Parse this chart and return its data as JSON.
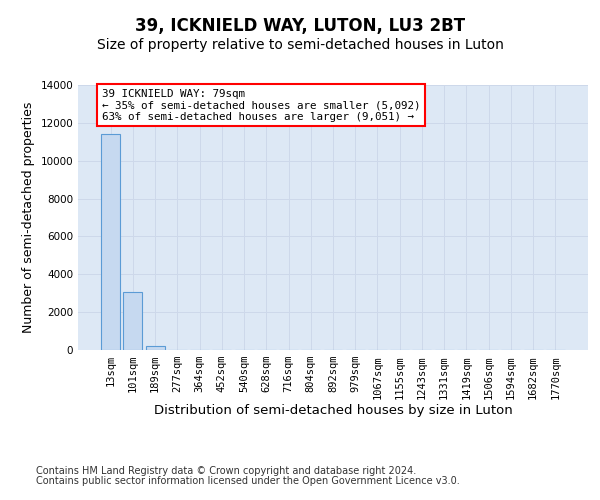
{
  "title": "39, ICKNIELD WAY, LUTON, LU3 2BT",
  "subtitle": "Size of property relative to semi-detached houses in Luton",
  "xlabel": "Distribution of semi-detached houses by size in Luton",
  "ylabel": "Number of semi-detached properties",
  "footnote1": "Contains HM Land Registry data © Crown copyright and database right 2024.",
  "footnote2": "Contains public sector information licensed under the Open Government Licence v3.0.",
  "categories": [
    "13sqm",
    "101sqm",
    "189sqm",
    "277sqm",
    "364sqm",
    "452sqm",
    "540sqm",
    "628sqm",
    "716sqm",
    "804sqm",
    "892sqm",
    "979sqm",
    "1067sqm",
    "1155sqm",
    "1243sqm",
    "1331sqm",
    "1419sqm",
    "1506sqm",
    "1594sqm",
    "1682sqm",
    "1770sqm"
  ],
  "values": [
    11400,
    3050,
    200,
    0,
    0,
    0,
    0,
    0,
    0,
    0,
    0,
    0,
    0,
    0,
    0,
    0,
    0,
    0,
    0,
    0,
    0
  ],
  "bar_color": "#c6d9f0",
  "bar_edge_color": "#5b9bd5",
  "ylim": [
    0,
    14000
  ],
  "yticks": [
    0,
    2000,
    4000,
    6000,
    8000,
    10000,
    12000,
    14000
  ],
  "annotation_line1": "39 ICKNIELD WAY: 79sqm",
  "annotation_line2": "← 35% of semi-detached houses are smaller (5,092)",
  "annotation_line3": "63% of semi-detached houses are larger (9,051) →",
  "grid_color": "#cdd8ea",
  "bg_color": "#dde8f5",
  "title_fontsize": 12,
  "subtitle_fontsize": 10,
  "axis_label_fontsize": 9,
  "tick_fontsize": 7.5,
  "footnote_fontsize": 7
}
